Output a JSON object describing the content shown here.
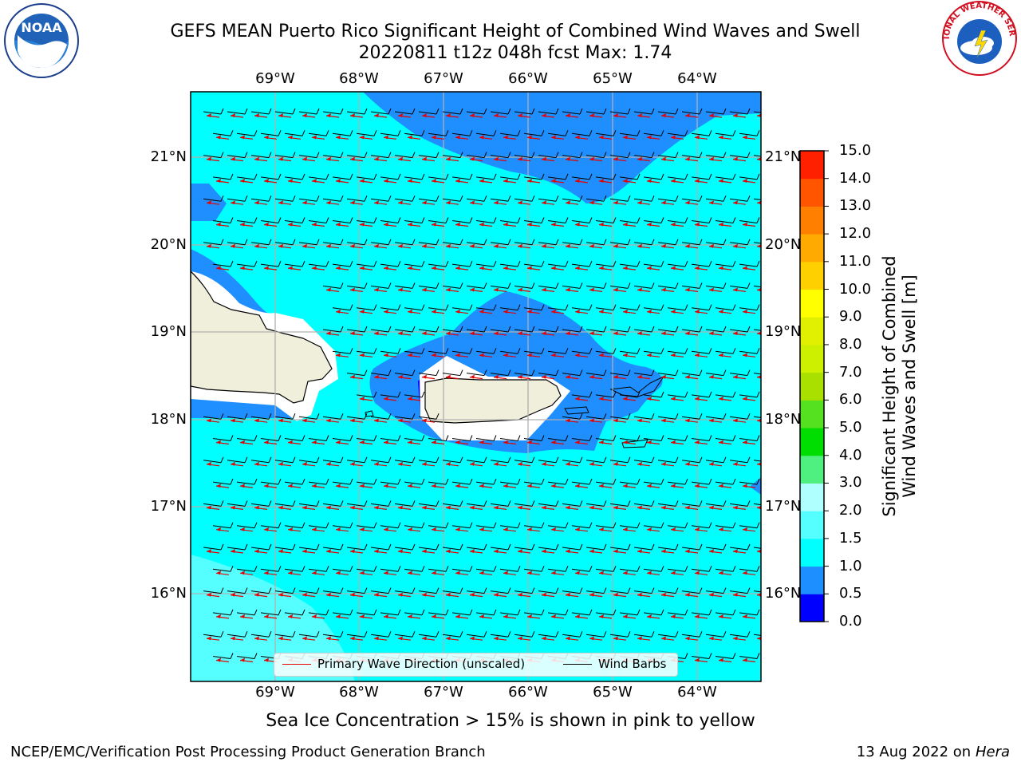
{
  "title": {
    "line1": "GEFS MEAN Puerto Rico Significant Height of Combined Wind Waves and Swell",
    "line2": "20220811 t12z 048h fcst   Max: 1.74"
  },
  "logos": {
    "left": {
      "text": "NOAA",
      "ring_text": "NATIONAL OCEANIC AND ATMOSPHERIC ADMINISTRATION · U.S. DEPARTMENT OF COMMERCE"
    },
    "right": {
      "ring_text": "NATIONAL WEATHER SERVICE"
    }
  },
  "map": {
    "lon_labels": [
      "69°W",
      "68°W",
      "67°W",
      "66°W",
      "65°W",
      "64°W"
    ],
    "lat_labels": [
      "21°N",
      "20°N",
      "19°N",
      "18°N",
      "17°N",
      "16°N"
    ],
    "background_color": "#00ffff",
    "wave_band_color": "#1f8fff",
    "land_color": "#efefdc",
    "arrow_color": "#e80000",
    "barb_color": "#000000"
  },
  "legend": {
    "red_label": "Primary Wave Direction (unscaled)",
    "black_label": "Wind Barbs"
  },
  "colorbar": {
    "label_line1": "Significant Height of Combined",
    "label_line2": "Wind Waves and Swell [m]",
    "ticks": [
      "0.0",
      "0.5",
      "1.0",
      "1.5",
      "2.0",
      "3.0",
      "4.0",
      "5.0",
      "6.0",
      "7.0",
      "8.0",
      "9.0",
      "10.0",
      "11.0",
      "12.0",
      "13.0",
      "14.0",
      "15.0"
    ],
    "colors": [
      "#0000ff",
      "#1e8fff",
      "#00ffff",
      "#55ffff",
      "#b0ffff",
      "#50f080",
      "#00dd00",
      "#55e020",
      "#aae000",
      "#ccf000",
      "#e0f000",
      "#ffff00",
      "#ffd000",
      "#ffaa00",
      "#ff8000",
      "#ff5500",
      "#ff2000"
    ]
  },
  "footer": {
    "note": "Sea Ice Concentration > 15% is shown in pink to yellow",
    "credit": "NCEP/EMC/Verification Post Processing Product Generation Branch",
    "date": "13 Aug 2022 on",
    "host": "Hera"
  }
}
